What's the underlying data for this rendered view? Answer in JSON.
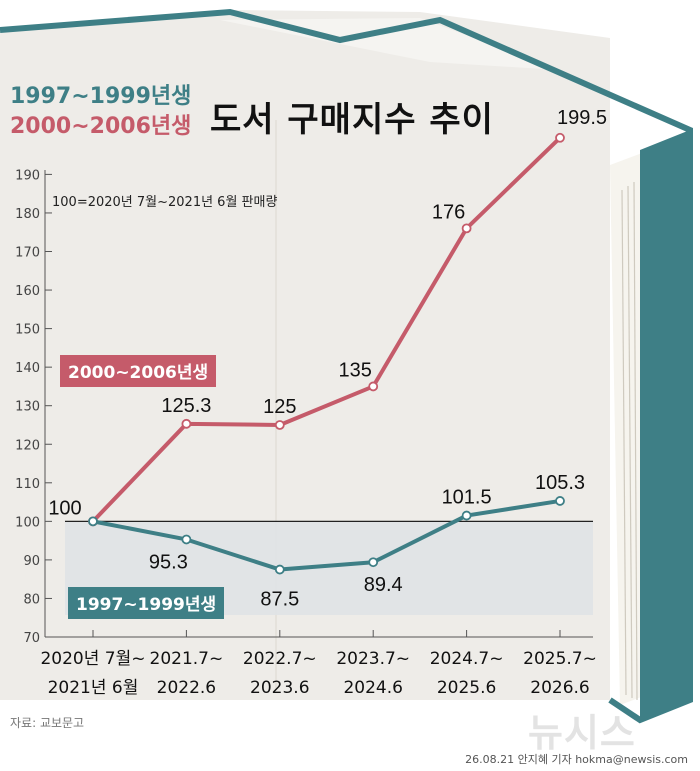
{
  "title": "도서 구매지수 추이",
  "legend": [
    {
      "label": "1997~1999년생",
      "color": "#3e7f86"
    },
    {
      "label": "2000~2006년생",
      "color": "#c55b6a"
    }
  ],
  "note": "100=2020년 7월~2021년 6월 판매량",
  "source": "자료: 교보문고",
  "credit": "26.08.21 안지혜 기자 hokma@newsis.com",
  "watermark": "뉴시스",
  "chart_data": {
    "type": "line",
    "categories": [
      "2020년 7월~\n2021년 6월",
      "2021.7~\n2022.6",
      "2022.7~\n2023.6",
      "2023.7~\n2024.6",
      "2024.7~\n2025.6",
      "2025.7~\n2026.6"
    ],
    "series": [
      {
        "name": "2000~2006년생",
        "color": "#c55b6a",
        "values": [
          100,
          125.3,
          125,
          135,
          176,
          199.5
        ]
      },
      {
        "name": "1997~1999년생",
        "color": "#3e7f86",
        "values": [
          100,
          95.3,
          87.5,
          89.4,
          101.5,
          105.3
        ]
      }
    ],
    "value_labels": {
      "2000~2006년생": [
        "100",
        "125.3",
        "125",
        "135",
        "176",
        "199.5"
      ],
      "1997~1999년생": [
        "",
        "95.3",
        "87.5",
        "89.4",
        "101.5",
        "105.3"
      ]
    },
    "ylim": [
      70,
      195
    ],
    "yticks": [
      70,
      80,
      90,
      100,
      110,
      120,
      130,
      140,
      150,
      160,
      170,
      180,
      190
    ],
    "reference_line": 100,
    "grid": false,
    "legend_position": "top-left"
  }
}
